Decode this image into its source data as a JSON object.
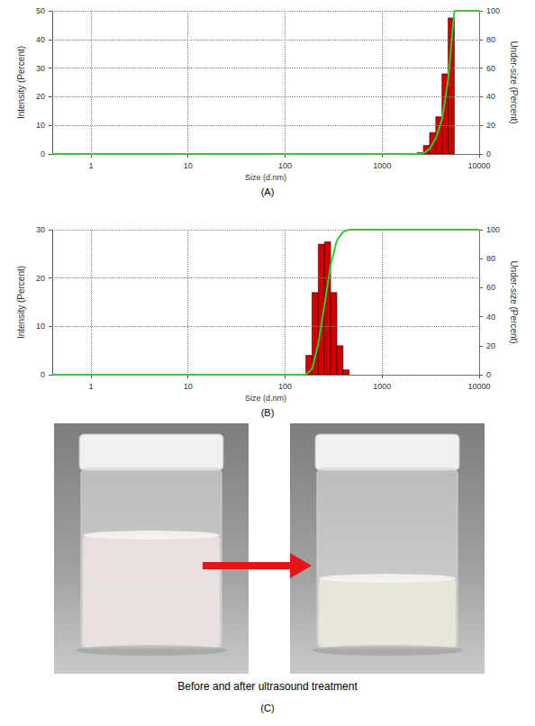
{
  "chart_data": [
    {
      "type": "histogram",
      "title": "(A)",
      "x_label": "Size (d.nm)",
      "y_label": "Intensity (Percent)",
      "y2_label": "Under-size (Percent)",
      "log": "x",
      "grid": true,
      "color": "#cc0000",
      "bins": [
        2300,
        2664,
        3085,
        3573,
        4138,
        4792,
        5550
      ],
      "counts": [
        0.5,
        3,
        7.5,
        13,
        28,
        47.5
      ],
      "xlim": [
        0.4,
        10000
      ],
      "xticks": [
        1,
        10,
        100,
        1000,
        10000
      ],
      "ylim": [
        0,
        50
      ],
      "yticks": [
        0,
        10,
        20,
        30,
        40,
        50
      ],
      "y2lim": [
        0,
        100
      ],
      "y2ticks": [
        0,
        20,
        40,
        60,
        80,
        100
      ],
      "series": [
        {
          "type": "line",
          "axis": "y2",
          "color": "#33cc33",
          "x": [
            0.4,
            2300,
            2664,
            3085,
            3573,
            4138,
            4792,
            5550,
            10000
          ],
          "values": [
            0,
            0,
            0.5,
            3.5,
            11,
            24,
            52,
            100,
            100
          ]
        }
      ]
    },
    {
      "type": "histogram",
      "title": "(B)",
      "x_label": "Size (d.nm)",
      "y_label": "Intensity (Percent)",
      "y2_label": "Under-size (Percent)",
      "log": "x",
      "grid": true,
      "color": "#cc0000",
      "bins": [
        164,
        190,
        220,
        255,
        295,
        342,
        396,
        459
      ],
      "counts": [
        4,
        17,
        27,
        27.5,
        17,
        6,
        1
      ],
      "xlim": [
        0.4,
        10000
      ],
      "xticks": [
        1,
        10,
        100,
        1000,
        10000
      ],
      "ylim": [
        0,
        30
      ],
      "yticks": [
        0,
        10,
        20,
        30
      ],
      "y2lim": [
        0,
        100
      ],
      "y2ticks": [
        0,
        20,
        40,
        60,
        80,
        100
      ],
      "series": [
        {
          "type": "line",
          "axis": "y2",
          "color": "#33cc33",
          "x": [
            0.4,
            164,
            190,
            220,
            255,
            295,
            342,
            396,
            459,
            10000
          ],
          "values": [
            0,
            0,
            4,
            21,
            48,
            75.5,
            92.5,
            98.5,
            100,
            100
          ]
        }
      ]
    }
  ],
  "photo_panel": {
    "caption": "Before and after ultrasound treatment",
    "label": "(C)"
  }
}
